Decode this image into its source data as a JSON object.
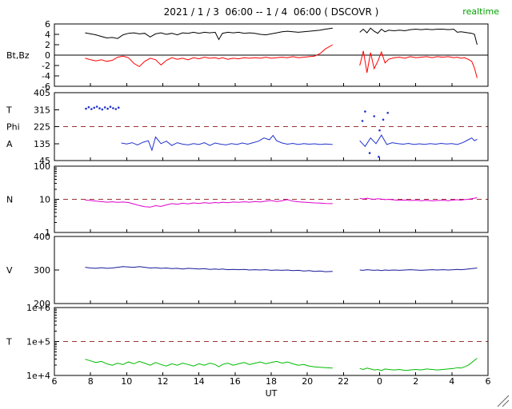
{
  "header": {
    "title": "2021 / 1 / 3  06:00 -- 1 / 4  06:00 ( DSCOVR )",
    "status": "realtime"
  },
  "colors": {
    "frame": "#000000",
    "dashed": "#993333",
    "realtime": "#00a000",
    "bt": "#000000",
    "bz": "#ff0000",
    "phi": "#2233cc",
    "density": "#dd00cc",
    "velocity": "#1a1a99",
    "temperature": "#00bb00"
  },
  "icons": {
    "resize_grip": "diagonal-lines"
  },
  "chart_data": {
    "type": "line",
    "title": "2021 / 1 / 3  06:00 -- 1 / 4  06:00 ( DSCOVR )",
    "legend": "none",
    "grid": "off",
    "x_axis": {
      "xlim": [
        6,
        30
      ],
      "ticks": [
        6,
        8,
        10,
        12,
        14,
        16,
        18,
        20,
        22,
        24,
        26,
        28,
        30
      ],
      "tick_labels": [
        "6",
        "8",
        "10",
        "12",
        "14",
        "16",
        "18",
        "20",
        "22",
        "0",
        "2",
        "4",
        "6"
      ],
      "label": "UT"
    },
    "time_grids": {
      "g1": [
        7.7,
        8.0,
        8.3,
        8.6,
        8.9,
        9.2,
        9.5,
        9.8,
        10.1,
        10.4,
        10.7,
        11.0,
        11.3,
        11.6,
        11.9,
        12.2,
        12.5,
        12.8,
        13.1,
        13.4,
        13.7,
        14.0,
        14.3,
        14.6,
        14.9,
        15.1,
        15.3,
        15.6,
        15.9,
        16.2,
        16.5,
        16.8,
        17.1,
        17.4,
        17.7,
        18.0,
        18.3,
        18.6,
        18.9,
        19.2,
        19.5,
        19.8,
        20.1,
        20.4,
        20.7,
        21.0,
        21.4
      ],
      "g2": [
        22.9,
        23.1,
        23.3,
        23.5,
        23.7,
        23.9,
        24.1,
        24.3,
        24.5,
        24.8,
        25.1,
        25.4,
        25.7,
        26.0,
        26.3,
        26.6,
        26.9,
        27.2,
        27.5,
        27.8,
        28.1,
        28.3,
        28.5,
        28.7,
        28.9,
        29.1,
        29.25,
        29.4
      ],
      "p1": [
        9.7,
        10.0,
        10.3,
        10.6,
        10.9,
        11.2,
        11.4,
        11.6,
        11.9,
        12.2,
        12.5,
        12.8,
        13.1,
        13.4,
        13.7,
        14.0,
        14.3,
        14.6,
        14.9,
        15.2,
        15.5,
        15.8,
        16.1,
        16.4,
        16.7,
        17.0,
        17.3,
        17.6,
        17.9,
        18.1,
        18.3,
        18.6,
        18.9,
        19.2,
        19.5,
        19.8,
        20.1,
        20.4,
        20.7,
        21.0,
        21.4
      ],
      "p2": [
        22.9,
        23.2,
        23.5,
        23.8,
        24.1,
        24.4,
        24.7,
        25.0,
        25.3,
        25.6,
        25.9,
        26.2,
        26.5,
        26.8,
        27.1,
        27.4,
        27.7,
        28.0,
        28.3,
        28.6,
        28.9,
        29.1,
        29.25,
        29.4
      ]
    },
    "panels": [
      {
        "name": "magnetic-field",
        "scale": "linear",
        "ylim": [
          -6,
          6
        ],
        "yticks": [
          -6,
          -4,
          -2,
          0,
          2,
          4,
          6
        ],
        "zero_line": true,
        "side_labels": [
          {
            "text": "Bt,Bz",
            "at": 0
          }
        ],
        "series": [
          {
            "name": "Bt",
            "color": "#000000",
            "segments": [
              {
                "x": "g1",
                "y": [
                  4.3,
                  4.1,
                  3.9,
                  3.6,
                  3.3,
                  3.4,
                  3.2,
                  3.9,
                  4.2,
                  4.3,
                  4.1,
                  4.2,
                  3.5,
                  4.1,
                  4.3,
                  4.0,
                  4.2,
                  3.9,
                  4.3,
                  4.2,
                  4.4,
                  4.2,
                  4.4,
                  4.3,
                  4.4,
                  3.0,
                  4.2,
                  4.4,
                  4.3,
                  4.4,
                  4.2,
                  4.3,
                  4.2,
                  4.0,
                  3.9,
                  4.1,
                  4.3,
                  4.5,
                  4.6,
                  4.5,
                  4.4,
                  4.5,
                  4.6,
                  4.7,
                  4.8,
                  5.0,
                  5.2
                ]
              },
              {
                "x": "g2",
                "y": [
                  4.4,
                  5.0,
                  4.3,
                  5.2,
                  4.6,
                  4.2,
                  5.0,
                  4.5,
                  4.8,
                  4.7,
                  4.8,
                  4.7,
                  4.9,
                  5.0,
                  4.9,
                  5.0,
                  4.9,
                  5.0,
                  5.0,
                  4.9,
                  5.0,
                  4.4,
                  4.5,
                  4.4,
                  4.3,
                  4.2,
                  4.0,
                  2.0
                ]
              }
            ]
          },
          {
            "name": "Bz",
            "color": "#ff0000",
            "segments": [
              {
                "x": "g1",
                "y": [
                  -0.6,
                  -0.9,
                  -1.1,
                  -0.9,
                  -1.2,
                  -1.0,
                  -0.4,
                  -0.2,
                  -0.5,
                  -1.6,
                  -2.2,
                  -1.2,
                  -0.6,
                  -0.9,
                  -1.9,
                  -1.0,
                  -0.5,
                  -0.8,
                  -0.6,
                  -0.9,
                  -0.5,
                  -0.7,
                  -0.4,
                  -0.6,
                  -0.5,
                  -0.7,
                  -0.5,
                  -0.8,
                  -0.6,
                  -0.7,
                  -0.5,
                  -0.6,
                  -0.5,
                  -0.6,
                  -0.4,
                  -0.6,
                  -0.5,
                  -0.4,
                  -0.5,
                  -0.3,
                  -0.5,
                  -0.4,
                  -0.3,
                  -0.2,
                  0.3,
                  1.2,
                  2.0
                ]
              },
              {
                "x": "g2",
                "y": [
                  -2.0,
                  0.8,
                  -3.4,
                  0.5,
                  -2.6,
                  -1.2,
                  0.6,
                  -1.5,
                  -0.8,
                  -0.5,
                  -0.4,
                  -0.6,
                  -0.3,
                  -0.5,
                  -0.4,
                  -0.3,
                  -0.5,
                  -0.3,
                  -0.4,
                  -0.3,
                  -0.5,
                  -0.4,
                  -0.6,
                  -0.5,
                  -0.8,
                  -1.2,
                  -2.5,
                  -4.4
                ]
              }
            ]
          }
        ]
      },
      {
        "name": "phi-angle",
        "scale": "linear",
        "ylim": [
          45,
          405
        ],
        "yticks": [
          45,
          135,
          225,
          315,
          405
        ],
        "dashed_line": 225,
        "side_labels": [
          {
            "text": "T",
            "at": 315
          },
          {
            "text": "Phi",
            "at": 225
          },
          {
            "text": "A",
            "at": 135
          }
        ],
        "series": [
          {
            "name": "Phi",
            "color": "#2233cc",
            "segments": [
              {
                "x": "p1",
                "y": [
                  138,
                  133,
                  140,
                  128,
                  142,
                  150,
                  100,
                  170,
                  135,
                  148,
                  125,
                  140,
                  132,
                  128,
                  135,
                  130,
                  140,
                  125,
                  138,
                  132,
                  128,
                  135,
                  130,
                  138,
                  132,
                  140,
                  148,
                  165,
                  155,
                  178,
                  150,
                  138,
                  132,
                  136,
                  130,
                  135,
                  132,
                  134,
                  130,
                  133,
                  130
                ]
              },
              {
                "x": "p2",
                "y": [
                  150,
                  120,
                  165,
                  135,
                  180,
                  130,
                  140,
                  135,
                  132,
                  136,
                  130,
                  134,
                  131,
                  135,
                  132,
                  136,
                  133,
                  135,
                  130,
                  140,
                  155,
                  165,
                  150,
                  158
                ]
              }
            ]
          }
        ],
        "scatter": [
          {
            "name": "Phi-dots",
            "color": "#2233cc",
            "points": [
              [
                7.75,
                320
              ],
              [
                7.9,
                328
              ],
              [
                8.05,
                318
              ],
              [
                8.2,
                325
              ],
              [
                8.35,
                331
              ],
              [
                8.5,
                322
              ],
              [
                8.65,
                316
              ],
              [
                8.8,
                327
              ],
              [
                8.95,
                320
              ],
              [
                9.1,
                330
              ],
              [
                9.25,
                323
              ],
              [
                9.4,
                318
              ],
              [
                9.55,
                326
              ],
              [
                23.05,
                255
              ],
              [
                23.2,
                305
              ],
              [
                23.45,
                85
              ],
              [
                23.7,
                280
              ],
              [
                23.95,
                65
              ],
              [
                24.0,
                205
              ],
              [
                24.2,
                262
              ],
              [
                24.45,
                298
              ]
            ]
          }
        ]
      },
      {
        "name": "density",
        "scale": "log",
        "ylim": [
          1,
          100
        ],
        "yticks": [
          1,
          10,
          100
        ],
        "ytick_labels": [
          "1",
          "10",
          "100"
        ],
        "dashed_line": 10,
        "side_labels": [
          {
            "text": "N",
            "at": 10
          }
        ],
        "series": [
          {
            "name": "N",
            "color": "#dd00cc",
            "segments": [
              {
                "x": "g1",
                "y": [
                  9.5,
                  9.2,
                  8.8,
                  8.5,
                  8.2,
                  8.4,
                  8.1,
                  8.3,
                  8.0,
                  7.2,
                  6.5,
                  6.0,
                  5.8,
                  6.4,
                  6.1,
                  6.8,
                  7.4,
                  7.1,
                  7.6,
                  7.3,
                  7.8,
                  7.5,
                  7.9,
                  7.6,
                  8.0,
                  7.8,
                  8.2,
                  7.9,
                  8.3,
                  8.1,
                  8.4,
                  8.2,
                  8.6,
                  8.3,
                  8.8,
                  9.2,
                  8.6,
                  9.0,
                  9.8,
                  8.8,
                  8.4,
                  8.2,
                  8.0,
                  7.8,
                  7.7,
                  7.5,
                  7.4
                ]
              },
              {
                "x": "g2",
                "y": [
                  10.6,
                  10.2,
                  10.8,
                  10.3,
                  10.0,
                  10.4,
                  10.1,
                  9.8,
                  10.0,
                  9.6,
                  9.3,
                  9.5,
                  9.2,
                  9.4,
                  9.1,
                  9.3,
                  9.0,
                  9.2,
                  9.4,
                  9.1,
                  9.5,
                  9.7,
                  9.4,
                  9.8,
                  10.0,
                  10.4,
                  10.8,
                  11.2
                ]
              }
            ]
          }
        ]
      },
      {
        "name": "velocity",
        "scale": "linear",
        "ylim": [
          200,
          400
        ],
        "yticks": [
          200,
          300,
          400
        ],
        "side_labels": [
          {
            "text": "V",
            "at": 300
          }
        ],
        "series": [
          {
            "name": "V",
            "color": "#1a1a99",
            "segments": [
              {
                "x": "g1",
                "y": [
                  308,
                  306,
                  305,
                  307,
                  305,
                  306,
                  308,
                  310,
                  309,
                  308,
                  310,
                  308,
                  306,
                  307,
                  305,
                  306,
                  304,
                  305,
                  303,
                  305,
                  304,
                  303,
                  304,
                  302,
                  303,
                  302,
                  303,
                  301,
                  302,
                  301,
                  302,
                  300,
                  301,
                  300,
                  301,
                  299,
                  300,
                  299,
                  300,
                  298,
                  299,
                  297,
                  298,
                  296,
                  297,
                  295,
                  296
                ]
              },
              {
                "x": "g2",
                "y": [
                  300,
                  299,
                  301,
                  300,
                  299,
                  300,
                  298,
                  300,
                  299,
                  300,
                  299,
                  300,
                  301,
                  300,
                  299,
                  300,
                  301,
                  300,
                  301,
                  300,
                  301,
                  302,
                  301,
                  302,
                  303,
                  304,
                  305,
                  306
                ]
              }
            ]
          }
        ]
      },
      {
        "name": "temperature",
        "scale": "log",
        "ylim": [
          10000,
          1000000
        ],
        "yticks": [
          10000,
          100000,
          1000000
        ],
        "ytick_labels": [
          "1e+4",
          "1e+5",
          "1e+6"
        ],
        "dashed_line": 100000,
        "side_labels": [
          {
            "text": "T",
            "at": 100000
          }
        ],
        "series": [
          {
            "name": "T",
            "color": "#00bb00",
            "segments": [
              {
                "x": "g1",
                "y": [
                  30000,
                  27000,
                  24000,
                  26000,
                  22000,
                  20000,
                  23000,
                  21000,
                  25000,
                  22000,
                  26000,
                  23000,
                  20000,
                  24000,
                  21000,
                  19000,
                  22000,
                  20000,
                  23000,
                  21000,
                  19000,
                  22000,
                  20000,
                  23000,
                  21000,
                  18000,
                  21000,
                  23000,
                  20000,
                  22000,
                  24000,
                  21000,
                  23000,
                  25000,
                  22000,
                  24000,
                  26000,
                  23000,
                  25000,
                  22000,
                  20000,
                  21000,
                  19000,
                  18000,
                  17500,
                  17000,
                  16500
                ]
              },
              {
                "x": "g2",
                "y": [
                  16000,
                  15000,
                  16500,
                  15500,
                  14500,
                  15000,
                  14000,
                  15500,
                  15000,
                  14500,
                  15000,
                  14000,
                  14500,
                  15000,
                  14500,
                  15500,
                  15000,
                  14500,
                  15000,
                  15500,
                  16000,
                  17000,
                  16500,
                  18000,
                  20000,
                  24000,
                  28000,
                  32000
                ]
              }
            ]
          }
        ]
      }
    ]
  }
}
